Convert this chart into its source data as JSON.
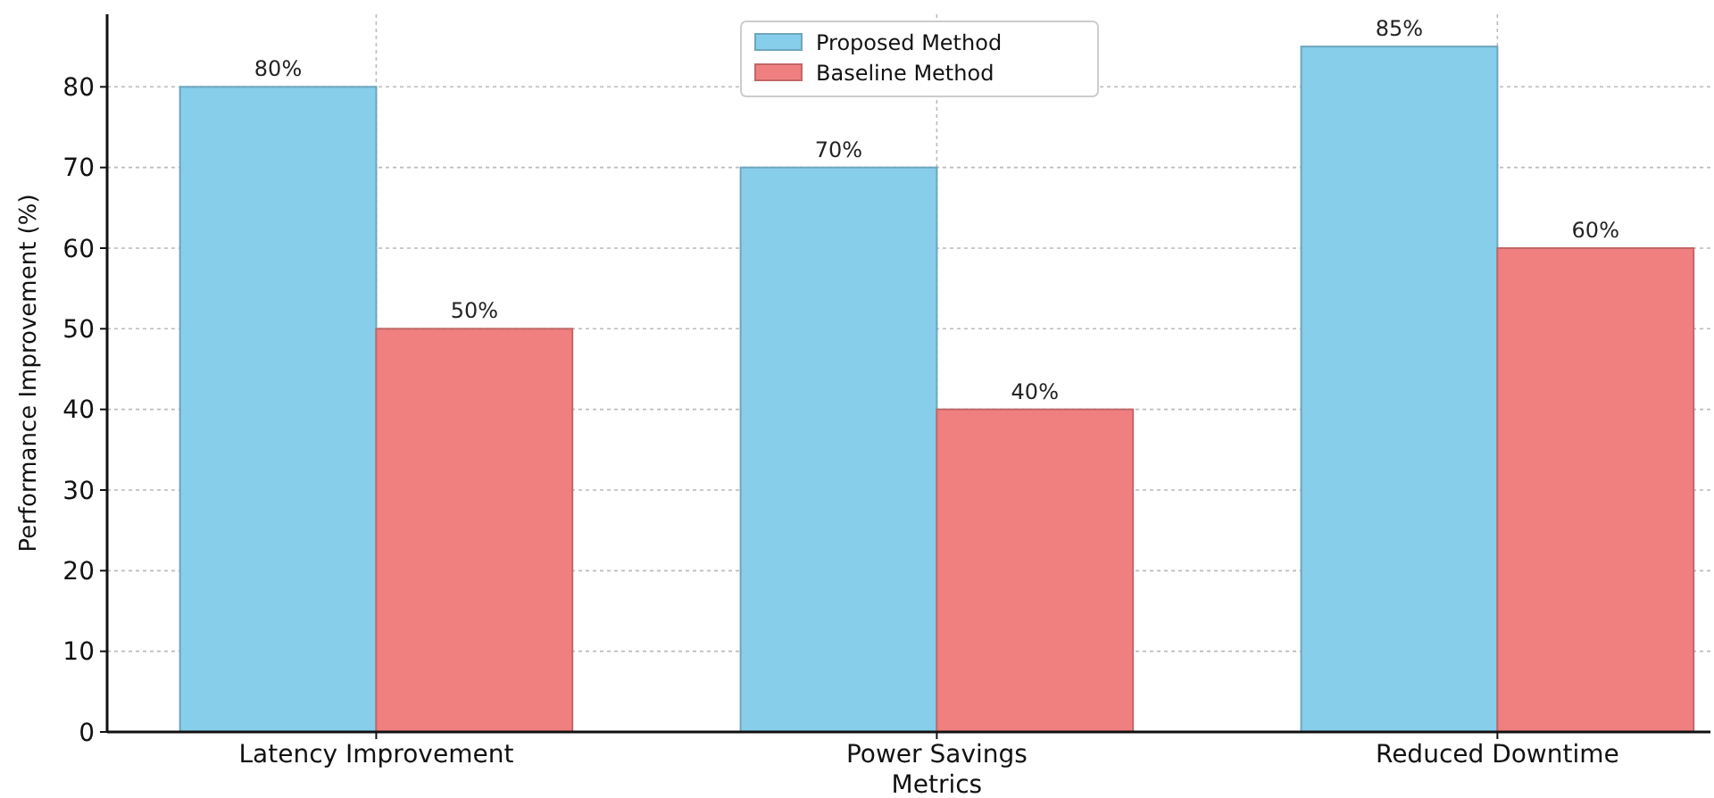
{
  "chart_data": {
    "type": "bar",
    "xlabel": "Metrics",
    "ylabel": "Performance Improvement (%)",
    "categories": [
      "Latency Improvement",
      "Power Savings",
      "Reduced Downtime"
    ],
    "series": [
      {
        "name": "Proposed Method",
        "color": "#87ceeb",
        "values": [
          80,
          70,
          85
        ],
        "value_labels": [
          "80%",
          "70%",
          "85%"
        ]
      },
      {
        "name": "Baseline Method",
        "color": "#f08080",
        "values": [
          50,
          40,
          60
        ],
        "value_labels": [
          "50%",
          "40%",
          "60%"
        ]
      }
    ],
    "ylim": [
      0,
      89
    ],
    "yticks": [
      0,
      10,
      20,
      30,
      40,
      50,
      60,
      70,
      80
    ],
    "grid": true,
    "legend": "top"
  }
}
